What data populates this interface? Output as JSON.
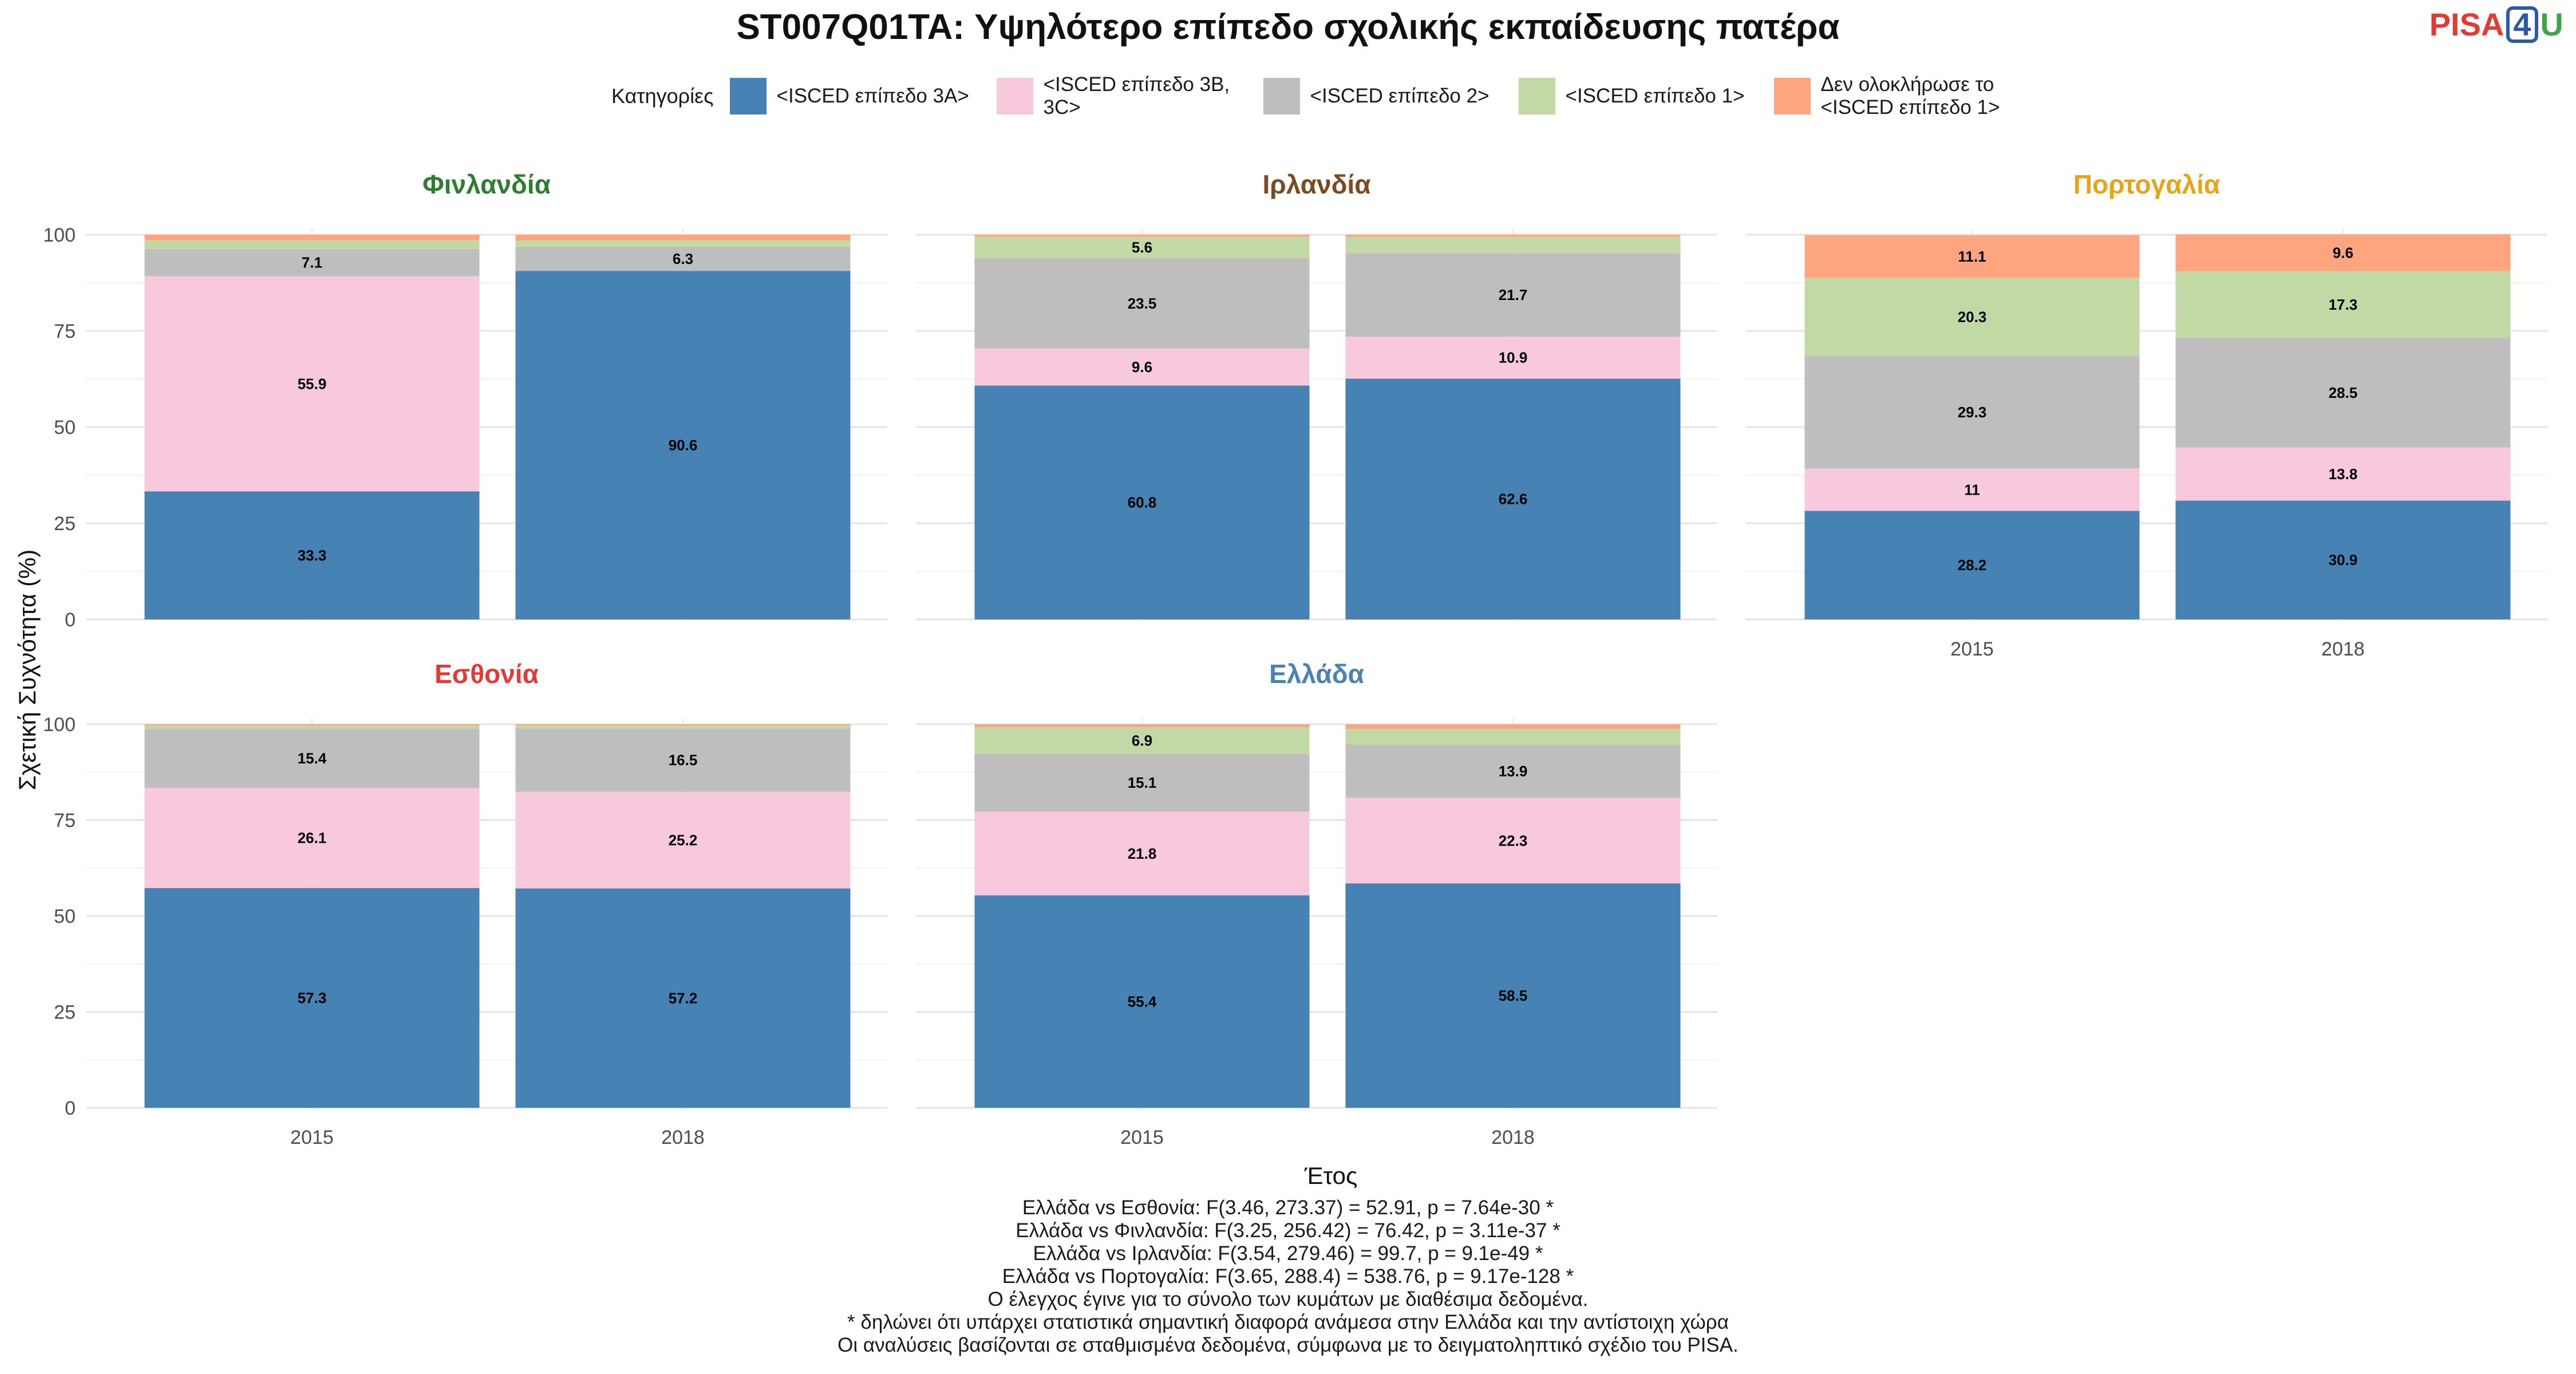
{
  "title": "ST007Q01TA: Υψηλότερο επίπεδο σχολικής εκπαίδευσης πατέρα",
  "logo": {
    "part1": "PISA",
    "part2": "4",
    "part3": "U"
  },
  "chart_data": {
    "type": "bar",
    "stacked": true,
    "xlabel": "Έτος",
    "ylabel": "Σχετική Συχνότητα (%)",
    "ylim": [
      0,
      100
    ],
    "yticks": [
      0,
      25,
      50,
      75,
      100
    ],
    "grid": true,
    "legend_title": "Κατηγορίες",
    "legend_position": "top",
    "categories": [
      "2015",
      "2018"
    ],
    "series": [
      {
        "name": "<ISCED επίπεδο 3A>",
        "color": "#4682b4"
      },
      {
        "name": "<ISCED επίπεδο 3B, 3C>",
        "color": "#f8c8dc"
      },
      {
        "name": "<ISCED επίπεδο 2>",
        "color": "#bebebe"
      },
      {
        "name": "<ISCED επίπεδο 1>",
        "color": "#c3d9a5"
      },
      {
        "name": "Δεν ολοκλήρωσε το <ISCED επίπεδο 1>",
        "color": "#fea57f"
      }
    ],
    "panels": [
      {
        "name": "Φινλανδία",
        "color": "#2e7d32",
        "values": {
          "2015": [
            33.3,
            55.9,
            7.1,
            2.2,
            1.5
          ],
          "2018": [
            90.6,
            0,
            6.3,
            1.6,
            1.5
          ]
        },
        "labels": {
          "2015": [
            "33.3",
            "55.9",
            "7.1",
            "",
            ""
          ],
          "2018": [
            "90.6",
            "",
            "6.3",
            "",
            ""
          ]
        }
      },
      {
        "name": "Ιρλανδία",
        "color": "#7b4a1e",
        "values": {
          "2015": [
            60.8,
            9.6,
            23.5,
            5.6,
            0.5
          ],
          "2018": [
            62.6,
            10.9,
            21.7,
            4.3,
            0.5
          ]
        },
        "labels": {
          "2015": [
            "60.8",
            "9.6",
            "23.5",
            "5.6",
            ""
          ],
          "2018": [
            "62.6",
            "10.9",
            "21.7",
            "",
            ""
          ]
        }
      },
      {
        "name": "Πορτογαλία",
        "color": "#e8a317",
        "values": {
          "2015": [
            28.2,
            11,
            29.3,
            20.3,
            11.1
          ],
          "2018": [
            30.9,
            13.8,
            28.5,
            17.3,
            9.6
          ]
        },
        "labels": {
          "2015": [
            "28.2",
            "11",
            "29.3",
            "20.3",
            "11.1"
          ],
          "2018": [
            "30.9",
            "13.8",
            "28.5",
            "17.3",
            "9.6"
          ]
        }
      },
      {
        "name": "Εσθονία",
        "color": "#e53935",
        "values": {
          "2015": [
            57.3,
            26.1,
            15.4,
            0.8,
            0.4
          ],
          "2018": [
            57.2,
            25.2,
            16.5,
            0.7,
            0.4
          ]
        },
        "labels": {
          "2015": [
            "57.3",
            "26.1",
            "15.4",
            "",
            ""
          ],
          "2018": [
            "57.2",
            "25.2",
            "16.5",
            "",
            ""
          ]
        }
      },
      {
        "name": "Ελλάδα",
        "color": "#4682b4",
        "values": {
          "2015": [
            55.4,
            21.8,
            15.1,
            6.9,
            0.8
          ],
          "2018": [
            58.5,
            22.3,
            13.9,
            4.1,
            1.2
          ]
        },
        "labels": {
          "2015": [
            "55.4",
            "21.8",
            "15.1",
            "6.9",
            ""
          ],
          "2018": [
            "58.5",
            "22.3",
            "13.9",
            "",
            ""
          ]
        }
      }
    ]
  },
  "footnotes": [
    "Ελλάδα vs Εσθονία: F(3.46, 273.37) = 52.91, p = 7.64e-30 *",
    "Ελλάδα vs Φινλανδία: F(3.25, 256.42) = 76.42, p = 3.11e-37 *",
    "Ελλάδα vs Ιρλανδία: F(3.54, 279.46) = 99.7, p = 9.1e-49 *",
    "Ελλάδα vs Πορτογαλία: F(3.65, 288.4) = 538.76, p = 9.17e-128 *",
    "Ο έλεγχος έγινε για το σύνολο των κυμάτων με διαθέσιμα δεδομένα.",
    "* δηλώνει ότι υπάρχει στατιστικά σημαντική διαφορά ανάμεσα στην Ελλάδα και την αντίστοιχη χώρα",
    "Οι αναλύσεις βασίζονται σε σταθμισμένα δεδομένα, σύμφωνα με το δειγματοληπτικό σχέδιο του PISA."
  ]
}
